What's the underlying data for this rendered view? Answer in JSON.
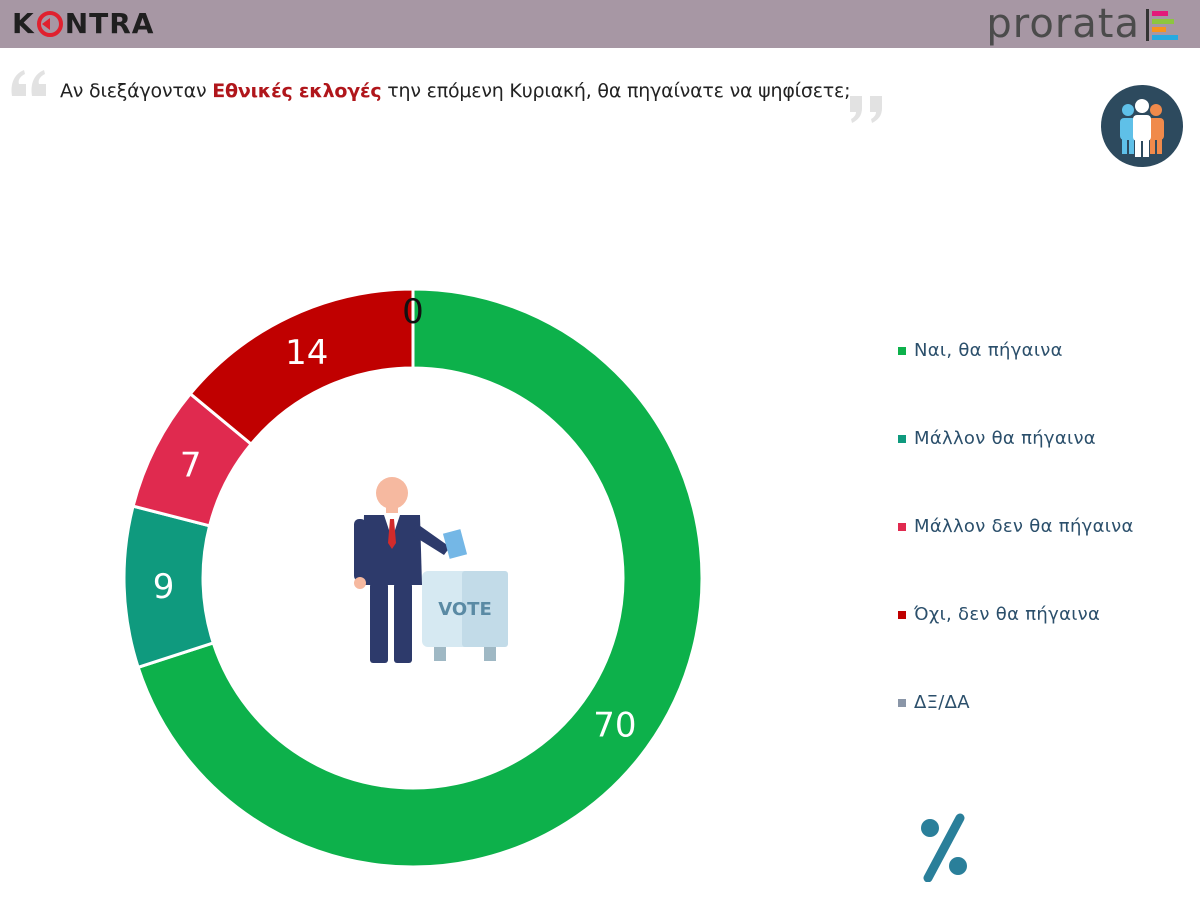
{
  "header": {
    "brand_left_pre": "K",
    "brand_left_post": "NTRA",
    "brand_right": "prorata"
  },
  "question": {
    "before": "Αν διεξάγονταν ",
    "highlight": "Εθνικές εκλογές",
    "after": " την επόμενη Κυριακή, θα πηγαίνατε να ψηφίσετε;"
  },
  "illustration": {
    "vote_label": "VOTE"
  },
  "chart_data": {
    "type": "pie",
    "variant": "donut",
    "unit_symbol": "%",
    "title": "",
    "legend_position": "right",
    "slices": [
      {
        "label": "Ναι, θα πήγαινα",
        "value": 70,
        "color": "#0db14b"
      },
      {
        "label": "Μάλλον θα πήγαινα",
        "value": 9,
        "color": "#0f9a7e"
      },
      {
        "label": "Μάλλον δεν θα πήγαινα",
        "value": 7,
        "color": "#e02a4f"
      },
      {
        "label": "Όχι, δεν θα πήγαινα",
        "value": 14,
        "color": "#c00000"
      },
      {
        "label": "ΔΞ/ΔΑ",
        "value": 0,
        "color": "#8a96a8"
      }
    ]
  }
}
